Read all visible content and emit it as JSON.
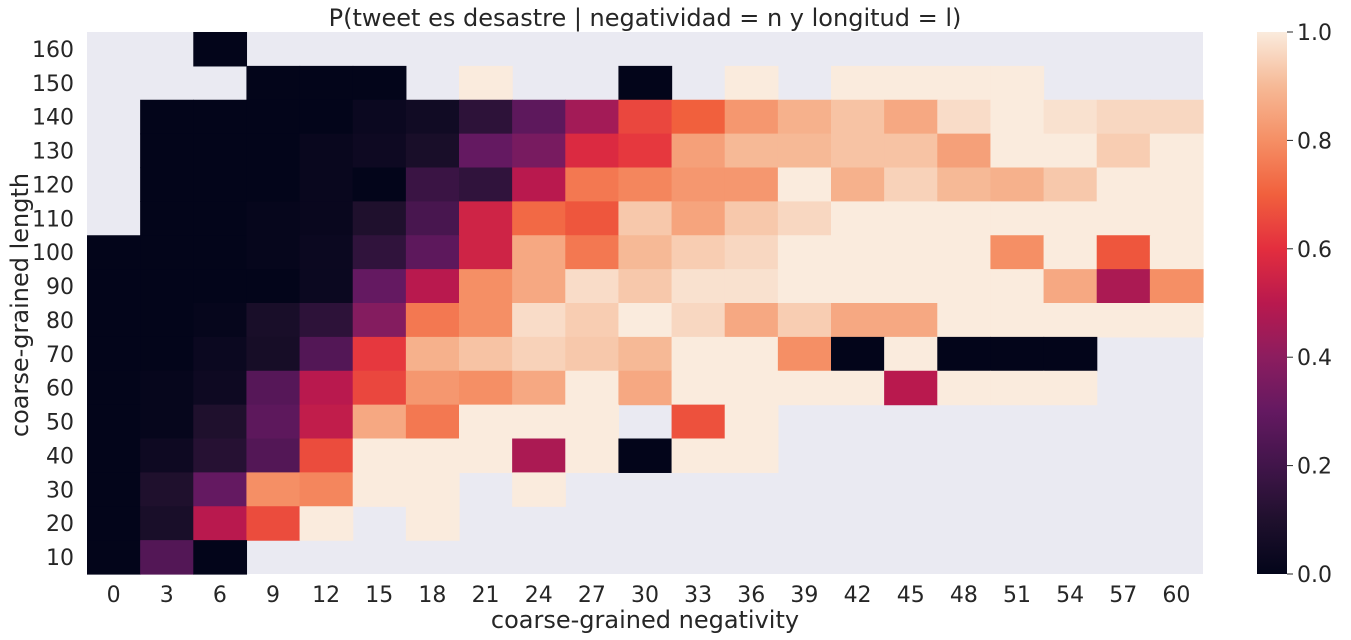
{
  "chart_data": {
    "type": "heatmap",
    "title": "P(tweet es desastre | negatividad = n y longitud = l)",
    "xlabel": "coarse-grained negativity",
    "ylabel": "coarse-grained length",
    "x": [
      "0",
      "3",
      "6",
      "9",
      "12",
      "15",
      "18",
      "21",
      "24",
      "27",
      "30",
      "33",
      "36",
      "39",
      "42",
      "45",
      "48",
      "51",
      "54",
      "57",
      "60"
    ],
    "y": [
      "160",
      "150",
      "140",
      "130",
      "120",
      "110",
      "100",
      "90",
      "80",
      "70",
      "60",
      "50",
      "40",
      "30",
      "20",
      "10"
    ],
    "colorbar": {
      "range": [
        0.0,
        1.0
      ],
      "ticks": [
        "0.0",
        "0.2",
        "0.4",
        "0.6",
        "0.8",
        "1.0"
      ]
    },
    "missing_color": "#EAEAF2",
    "values": [
      [
        null,
        null,
        0.0,
        null,
        null,
        null,
        null,
        null,
        null,
        null,
        null,
        null,
        null,
        null,
        null,
        null,
        null,
        null,
        null,
        null,
        null
      ],
      [
        null,
        null,
        null,
        0.0,
        0.0,
        0.0,
        null,
        1.0,
        null,
        null,
        0.0,
        null,
        1.0,
        null,
        1.0,
        1.0,
        1.0,
        1.0,
        null,
        null,
        null
      ],
      [
        null,
        0.0,
        0.0,
        0.0,
        0.0,
        0.03,
        0.05,
        0.14,
        0.28,
        0.45,
        0.65,
        0.7,
        0.82,
        0.88,
        0.92,
        0.86,
        0.97,
        1.0,
        0.98,
        0.96,
        0.96
      ],
      [
        null,
        0.0,
        0.0,
        0.0,
        0.02,
        0.04,
        0.08,
        0.3,
        0.35,
        0.58,
        0.62,
        0.84,
        0.9,
        0.9,
        0.92,
        0.92,
        0.84,
        1.0,
        1.0,
        0.94,
        1.0
      ],
      [
        null,
        0.0,
        0.0,
        0.0,
        0.02,
        0.0,
        0.18,
        0.15,
        0.5,
        0.75,
        0.78,
        0.82,
        0.82,
        1.0,
        0.88,
        0.95,
        0.9,
        0.88,
        0.93,
        1.0,
        1.0
      ],
      [
        null,
        0.0,
        0.0,
        0.01,
        0.02,
        0.1,
        0.22,
        0.55,
        0.72,
        0.68,
        0.93,
        0.85,
        0.93,
        0.96,
        1.0,
        1.0,
        1.0,
        1.0,
        1.0,
        1.0,
        1.0
      ],
      [
        0.0,
        0.0,
        0.0,
        0.01,
        0.03,
        0.15,
        0.28,
        0.55,
        0.86,
        0.75,
        0.9,
        0.94,
        0.96,
        1.0,
        1.0,
        1.0,
        1.0,
        0.8,
        1.0,
        0.68,
        1.0
      ],
      [
        0.0,
        0.0,
        0.0,
        0.0,
        0.03,
        0.3,
        0.5,
        0.8,
        0.86,
        0.97,
        0.93,
        0.98,
        0.98,
        1.0,
        1.0,
        1.0,
        1.0,
        1.0,
        0.86,
        0.47,
        0.8
      ],
      [
        0.0,
        0.0,
        0.01,
        0.08,
        0.14,
        0.38,
        0.75,
        0.8,
        0.97,
        0.94,
        1.0,
        0.96,
        0.86,
        0.94,
        0.86,
        0.86,
        1.0,
        1.0,
        1.0,
        1.0,
        1.0
      ],
      [
        0.0,
        0.0,
        0.03,
        0.07,
        0.25,
        0.62,
        0.88,
        0.92,
        0.95,
        0.93,
        0.9,
        1.0,
        1.0,
        0.8,
        0.0,
        1.0,
        0.0,
        0.0,
        0.0,
        null,
        null
      ],
      [
        0.0,
        0.01,
        0.04,
        0.26,
        0.5,
        0.65,
        0.82,
        0.8,
        0.86,
        1.0,
        0.86,
        1.0,
        1.0,
        1.0,
        1.0,
        0.5,
        1.0,
        1.0,
        1.0,
        null,
        null
      ],
      [
        0.0,
        0.01,
        0.1,
        0.28,
        0.52,
        0.86,
        0.75,
        1.0,
        1.0,
        1.0,
        null,
        0.67,
        1.0,
        null,
        null,
        null,
        null,
        null,
        null,
        null,
        null
      ],
      [
        0.0,
        0.04,
        0.12,
        0.25,
        0.66,
        1.0,
        1.0,
        1.0,
        0.47,
        1.0,
        0.0,
        1.0,
        1.0,
        null,
        null,
        null,
        null,
        null,
        null,
        null,
        null
      ],
      [
        0.0,
        0.1,
        0.3,
        0.8,
        0.78,
        1.0,
        1.0,
        null,
        1.0,
        null,
        null,
        null,
        null,
        null,
        null,
        null,
        null,
        null,
        null,
        null,
        null
      ],
      [
        0.0,
        0.08,
        0.5,
        0.66,
        1.0,
        null,
        1.0,
        null,
        null,
        null,
        null,
        null,
        null,
        null,
        null,
        null,
        null,
        null,
        null,
        null,
        null
      ],
      [
        0.0,
        0.25,
        0.0,
        null,
        null,
        null,
        null,
        null,
        null,
        null,
        null,
        null,
        null,
        null,
        null,
        null,
        null,
        null,
        null,
        null,
        null
      ]
    ]
  }
}
